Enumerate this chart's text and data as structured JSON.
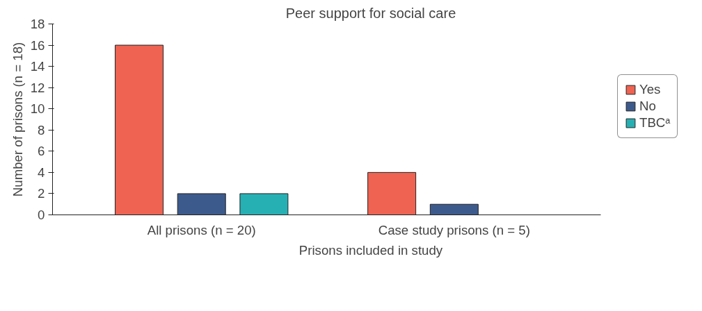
{
  "chart_data": {
    "type": "bar",
    "title": "Peer support for social care",
    "xlabel": "Prisons included in study",
    "ylabel": "Number of prisons (n = 18)",
    "categories": [
      "All prisons (n = 20)",
      "Case study prisons (n = 5)"
    ],
    "series": [
      {
        "name": "Yes",
        "color": "#ee6352",
        "values": [
          16,
          4
        ]
      },
      {
        "name": "No",
        "color": "#3d5a8c",
        "values": [
          2,
          1
        ]
      },
      {
        "name": "TBCᵃ",
        "color": "#27b0b4",
        "values": [
          2,
          null
        ]
      }
    ],
    "ylim": [
      0,
      18
    ],
    "yticks": [
      0,
      2,
      4,
      6,
      8,
      10,
      12,
      14,
      16,
      18
    ],
    "grid": false,
    "legend": "right"
  }
}
